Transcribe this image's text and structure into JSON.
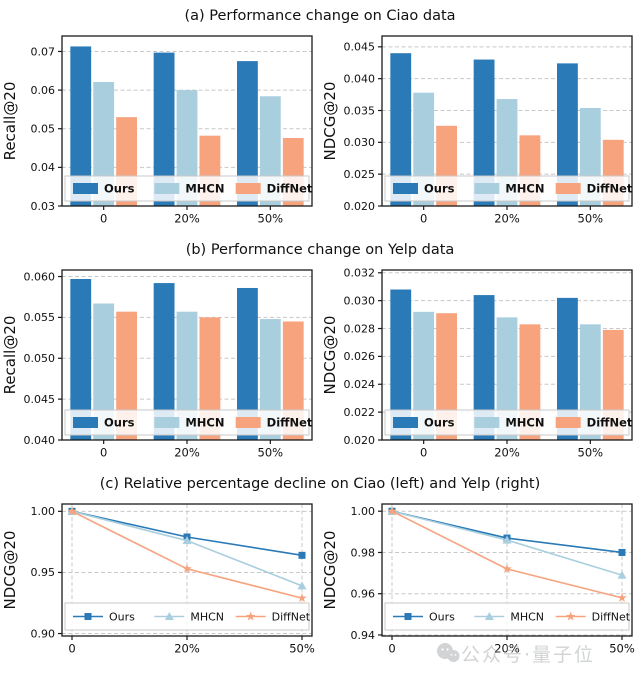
{
  "sections": [
    {
      "id": "a",
      "title": "(a) Performance change on Ciao data"
    },
    {
      "id": "b",
      "title": "(b) Performance change on Yelp data"
    },
    {
      "id": "c",
      "title": "(c) Relative percentage decline on Ciao (left) and Yelp (right)"
    }
  ],
  "colors": {
    "ours": "#2a7ab7",
    "mhcn": "#a9cfdf",
    "diffnet": "#f7a37e",
    "grid": "#c8c8c8",
    "axis": "#1a1a1a",
    "legend_border": "#c9c9c9"
  },
  "watermark": {
    "text": "公众号·量子位"
  },
  "chart_data": [
    {
      "type": "bar",
      "section": "a",
      "position": "left",
      "title_ref": "(a) Performance change on Ciao data",
      "ylabel": "Recall@20",
      "categories": [
        "0",
        "20%",
        "50%"
      ],
      "ylim": [
        0.03,
        0.074
      ],
      "yticks": [
        0.03,
        0.04,
        0.05,
        0.06,
        0.07
      ],
      "tick_decimals": 2,
      "legend_position": "lower-inside",
      "legend_bold": true,
      "grid": "horizontal-dashed",
      "series": [
        {
          "name": "Ours",
          "color": "#2a7ab7",
          "values": [
            0.0713,
            0.0697,
            0.0675
          ]
        },
        {
          "name": "MHCN",
          "color": "#a9cfdf",
          "values": [
            0.0621,
            0.06,
            0.0584
          ]
        },
        {
          "name": "DiffNet",
          "color": "#f7a37e",
          "values": [
            0.053,
            0.0482,
            0.0476
          ]
        }
      ]
    },
    {
      "type": "bar",
      "section": "a",
      "position": "right",
      "title_ref": "(a) Performance change on Ciao data",
      "ylabel": "NDCG@20",
      "categories": [
        "0",
        "20%",
        "50%"
      ],
      "ylim": [
        0.02,
        0.0467
      ],
      "yticks": [
        0.02,
        0.025,
        0.03,
        0.035,
        0.04,
        0.045
      ],
      "tick_decimals": 3,
      "legend_position": "lower-inside",
      "legend_bold": true,
      "grid": "horizontal-dashed",
      "series": [
        {
          "name": "Ours",
          "color": "#2a7ab7",
          "values": [
            0.044,
            0.043,
            0.0424
          ]
        },
        {
          "name": "MHCN",
          "color": "#a9cfdf",
          "values": [
            0.0378,
            0.0368,
            0.0354
          ]
        },
        {
          "name": "DiffNet",
          "color": "#f7a37e",
          "values": [
            0.0326,
            0.0311,
            0.0304
          ]
        }
      ]
    },
    {
      "type": "bar",
      "section": "b",
      "position": "left",
      "title_ref": "(b) Performance change on Yelp data",
      "ylabel": "Recall@20",
      "categories": [
        "0",
        "20%",
        "50%"
      ],
      "ylim": [
        0.04,
        0.0608
      ],
      "yticks": [
        0.04,
        0.045,
        0.05,
        0.055,
        0.06
      ],
      "tick_decimals": 3,
      "legend_position": "lower-inside",
      "legend_bold": true,
      "grid": "horizontal-dashed",
      "series": [
        {
          "name": "Ours",
          "color": "#2a7ab7",
          "values": [
            0.0597,
            0.0592,
            0.0586
          ]
        },
        {
          "name": "MHCN",
          "color": "#a9cfdf",
          "values": [
            0.0567,
            0.0557,
            0.0548
          ]
        },
        {
          "name": "DiffNet",
          "color": "#f7a37e",
          "values": [
            0.0557,
            0.055,
            0.0545
          ]
        }
      ]
    },
    {
      "type": "bar",
      "section": "b",
      "position": "right",
      "title_ref": "(b) Performance change on Yelp data",
      "ylabel": "NDCG@20",
      "categories": [
        "0",
        "20%",
        "50%"
      ],
      "ylim": [
        0.02,
        0.0322
      ],
      "yticks": [
        0.02,
        0.022,
        0.024,
        0.026,
        0.028,
        0.03,
        0.032
      ],
      "tick_decimals": 3,
      "legend_position": "lower-inside",
      "legend_bold": true,
      "grid": "horizontal-dashed",
      "series": [
        {
          "name": "Ours",
          "color": "#2a7ab7",
          "values": [
            0.0308,
            0.0304,
            0.0302
          ]
        },
        {
          "name": "MHCN",
          "color": "#a9cfdf",
          "values": [
            0.0292,
            0.0288,
            0.0283
          ]
        },
        {
          "name": "DiffNet",
          "color": "#f7a37e",
          "values": [
            0.0291,
            0.0283,
            0.0279
          ]
        }
      ]
    },
    {
      "type": "line",
      "section": "c",
      "position": "left",
      "title_ref": "(c) Relative percentage decline on Ciao (left) and Yelp (right)",
      "ylabel": "NDCG@20",
      "categories": [
        "0",
        "20%",
        "50%"
      ],
      "ylim": [
        0.898,
        1.006
      ],
      "yticks": [
        0.9,
        0.95,
        1.0
      ],
      "tick_decimals": 2,
      "legend_position": "lower-inside",
      "legend_bold": false,
      "grid": "both-dashed",
      "series": [
        {
          "name": "Ours",
          "color": "#2a7ab7",
          "marker": "square",
          "values": [
            1.0,
            0.979,
            0.964
          ]
        },
        {
          "name": "MHCN",
          "color": "#a9cfdf",
          "marker": "triangle",
          "values": [
            1.0,
            0.976,
            0.939
          ]
        },
        {
          "name": "DiffNet",
          "color": "#f7a37e",
          "marker": "star",
          "values": [
            1.0,
            0.953,
            0.929
          ]
        }
      ]
    },
    {
      "type": "line",
      "section": "c",
      "position": "right",
      "title_ref": "(c) Relative percentage decline on Ciao (left) and Yelp (right)",
      "ylabel": "NDCG@20",
      "categories": [
        "0",
        "20%",
        "50%"
      ],
      "ylim": [
        0.9395,
        1.0035
      ],
      "yticks": [
        0.94,
        0.96,
        0.98,
        1.0
      ],
      "tick_decimals": 2,
      "legend_position": "lower-inside",
      "legend_bold": false,
      "grid": "both-dashed",
      "series": [
        {
          "name": "Ours",
          "color": "#2a7ab7",
          "marker": "square",
          "values": [
            1.0,
            0.987,
            0.98
          ]
        },
        {
          "name": "MHCN",
          "color": "#a9cfdf",
          "marker": "triangle",
          "values": [
            1.0,
            0.986,
            0.969
          ]
        },
        {
          "name": "DiffNet",
          "color": "#f7a37e",
          "marker": "star",
          "values": [
            1.0,
            0.972,
            0.958
          ]
        }
      ]
    }
  ]
}
